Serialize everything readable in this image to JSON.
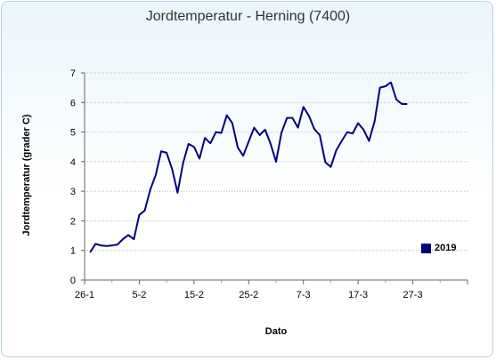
{
  "chart_data": {
    "type": "line",
    "title": "Jordtemperatur - Herning (7400)",
    "xlabel": "Dato",
    "ylabel": "Jordtemperatur (grader C)",
    "ylim": [
      0,
      7
    ],
    "yticks": [
      "0",
      "1",
      "2",
      "3",
      "4",
      "5",
      "6",
      "7"
    ],
    "xticks": [
      {
        "label": "26-1",
        "day": 0
      },
      {
        "label": "5-2",
        "day": 10
      },
      {
        "label": "15-2",
        "day": 20
      },
      {
        "label": "25-2",
        "day": 30
      },
      {
        "label": "7-3",
        "day": 40
      },
      {
        "label": "17-3",
        "day": 50
      },
      {
        "label": "27-3",
        "day": 60
      }
    ],
    "xlim": [
      0,
      70
    ],
    "grid": "horizontal dotted",
    "legend_position": "right",
    "colors": {
      "series": "#000080",
      "grid": "#999999"
    },
    "series": [
      {
        "name": "2019",
        "x": [
          1,
          2,
          3,
          4,
          5,
          6,
          7,
          8,
          9,
          10,
          11,
          12,
          13,
          14,
          15,
          16,
          17,
          18,
          19,
          20,
          21,
          22,
          23,
          24,
          25,
          26,
          27,
          28,
          29,
          30,
          31,
          32,
          33,
          34,
          35,
          36,
          37,
          38,
          39,
          40,
          41,
          42,
          43,
          44,
          45,
          46,
          47,
          48,
          49,
          50,
          51,
          52,
          53,
          54,
          55,
          56,
          57,
          58,
          59
        ],
        "values": [
          0.93,
          1.22,
          1.17,
          1.15,
          1.17,
          1.2,
          1.38,
          1.52,
          1.38,
          2.2,
          2.35,
          3.05,
          3.55,
          4.35,
          4.3,
          3.75,
          2.95,
          3.95,
          4.6,
          4.5,
          4.1,
          4.8,
          4.62,
          5.0,
          4.97,
          5.57,
          5.3,
          4.48,
          4.2,
          4.68,
          5.15,
          4.9,
          5.08,
          4.6,
          4.0,
          4.98,
          5.48,
          5.48,
          5.15,
          5.85,
          5.55,
          5.1,
          4.9,
          3.98,
          3.82,
          4.38,
          4.7,
          5.0,
          4.95,
          5.3,
          5.08,
          4.7,
          5.35,
          6.5,
          6.55,
          6.68,
          6.1,
          5.95,
          5.95
        ]
      }
    ]
  }
}
